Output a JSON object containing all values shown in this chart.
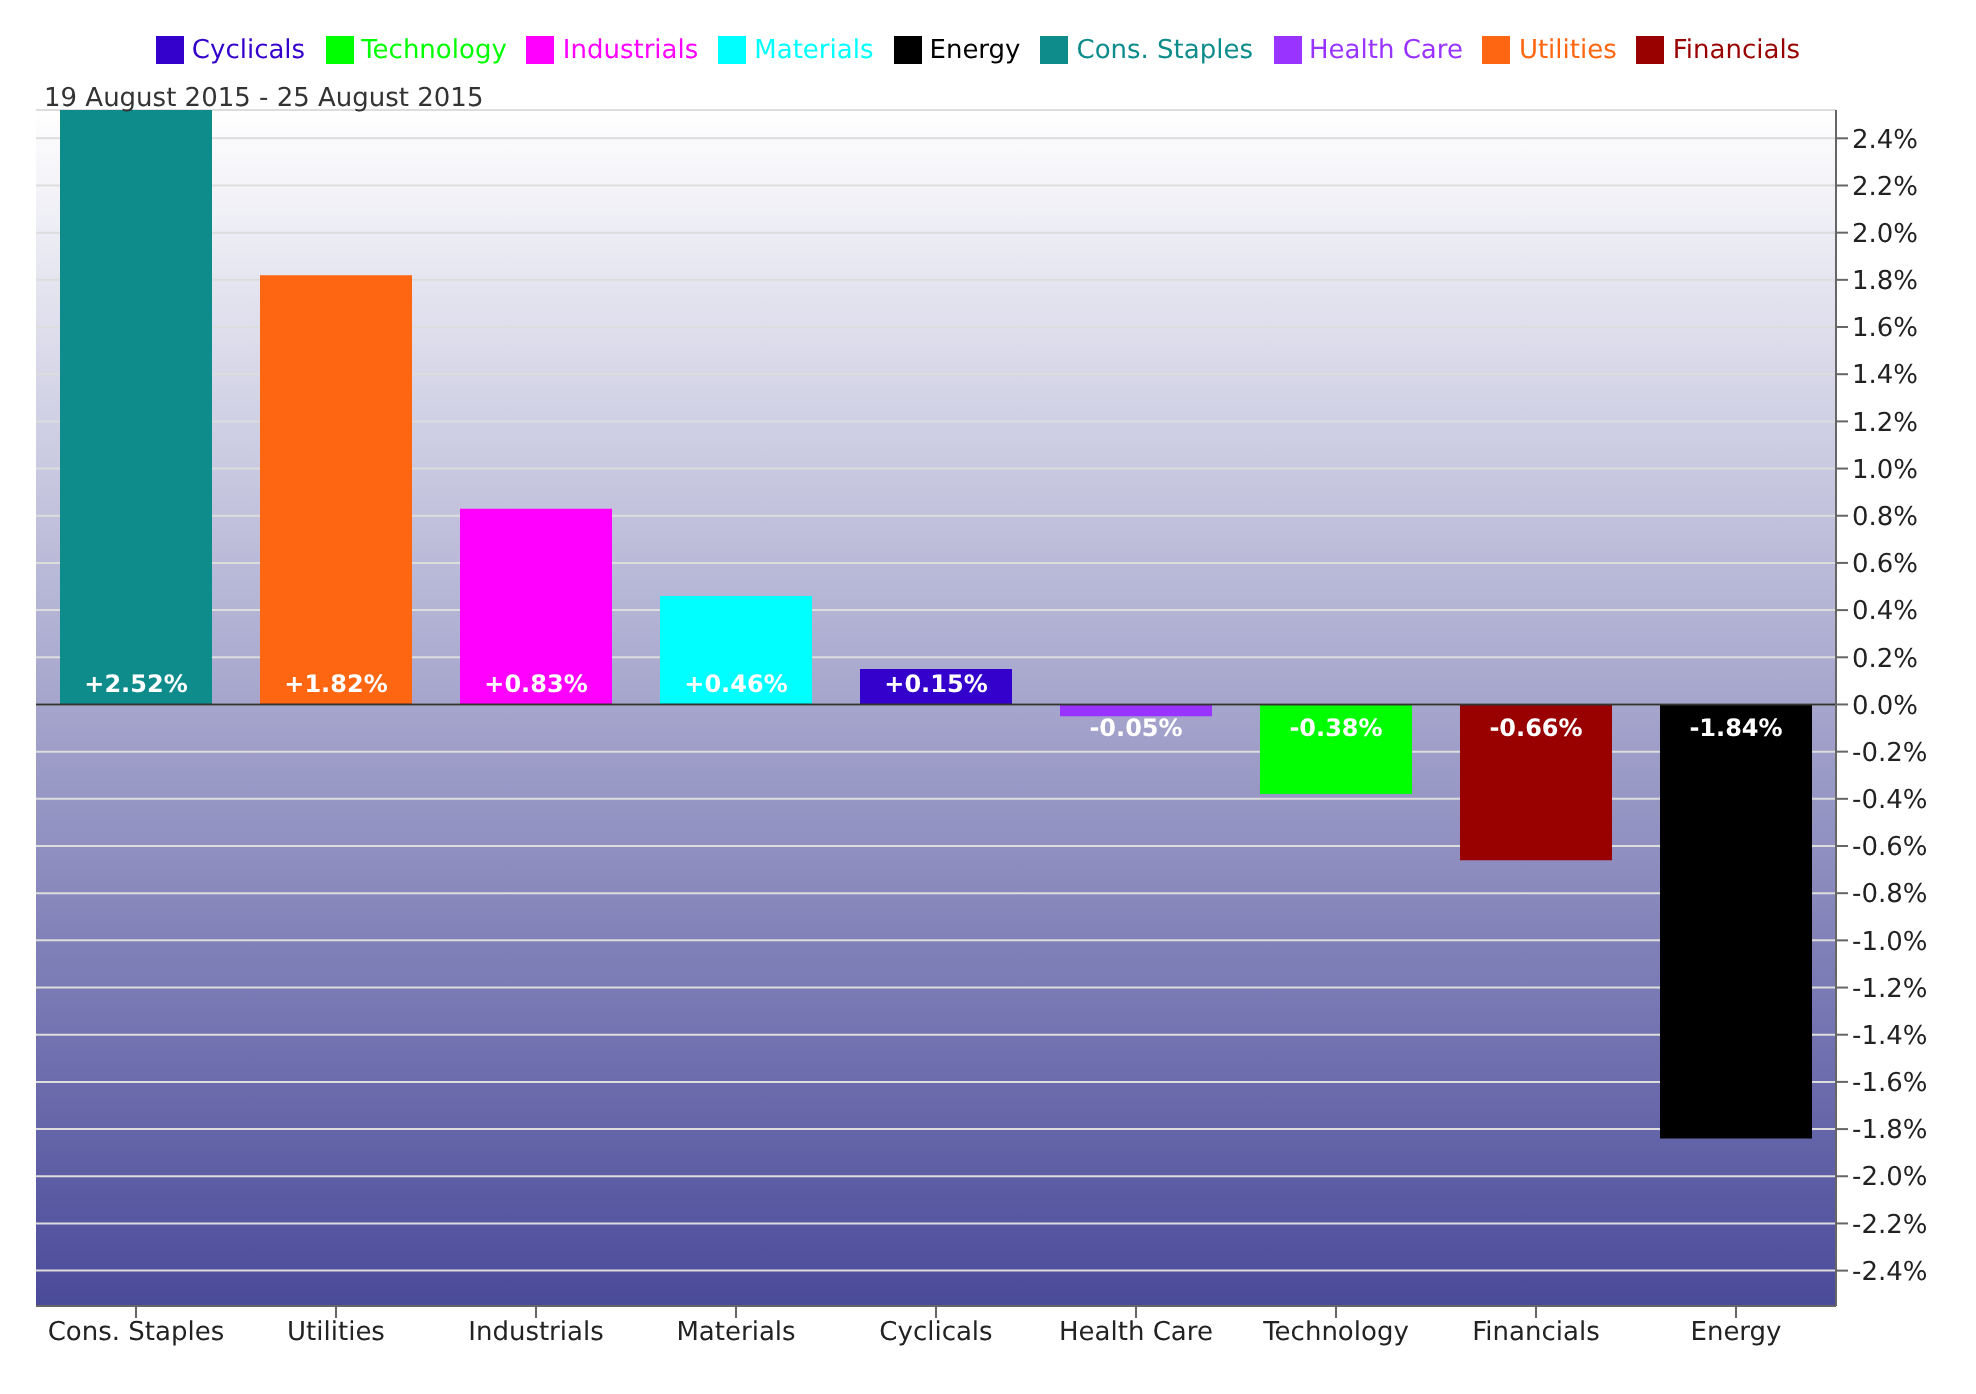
{
  "chart_data": {
    "type": "bar",
    "subtitle": "19 August 2015 - 25 August 2015",
    "categories": [
      "Cons. Staples",
      "Utilities",
      "Industrials",
      "Materials",
      "Cyclicals",
      "Health Care",
      "Technology",
      "Financials",
      "Energy"
    ],
    "stacked": true,
    "legend": "top",
    "grid": "y",
    "ylim": [
      -2.55,
      2.52
    ],
    "yticks": [
      {
        "value": -2.4,
        "label": "-2.4%"
      },
      {
        "value": -2.2,
        "label": "-2.2%"
      },
      {
        "value": -2.0,
        "label": "-2.0%"
      },
      {
        "value": -1.8,
        "label": "-1.8%"
      },
      {
        "value": -1.6,
        "label": "-1.6%"
      },
      {
        "value": -1.4,
        "label": "-1.4%"
      },
      {
        "value": -1.2,
        "label": "-1.2%"
      },
      {
        "value": -1.0,
        "label": "-1.0%"
      },
      {
        "value": -0.8,
        "label": "-0.8%"
      },
      {
        "value": -0.6,
        "label": "-0.6%"
      },
      {
        "value": -0.4,
        "label": "-0.4%"
      },
      {
        "value": -0.2,
        "label": "-0.2%"
      },
      {
        "value": 0,
        "label": "0.0%"
      },
      {
        "value": 0.2,
        "label": "0.2%"
      },
      {
        "value": 0.4,
        "label": "0.4%"
      },
      {
        "value": 0.6,
        "label": "0.6%"
      },
      {
        "value": 0.8,
        "label": "0.8%"
      },
      {
        "value": 1.0,
        "label": "1.0%"
      },
      {
        "value": 1.2,
        "label": "1.2%"
      },
      {
        "value": 1.4,
        "label": "1.4%"
      },
      {
        "value": 1.6,
        "label": "1.6%"
      },
      {
        "value": 1.8,
        "label": "1.8%"
      },
      {
        "value": 2.0,
        "label": "2.0%"
      },
      {
        "value": 2.2,
        "label": "2.2%"
      },
      {
        "value": 2.4,
        "label": "2.4%"
      }
    ],
    "series": [
      {
        "name": "Cyclicals",
        "color": "#3300cc",
        "values": [
          null,
          null,
          null,
          null,
          0.15,
          null,
          null,
          null,
          null
        ],
        "value_labels": [
          null,
          null,
          null,
          null,
          "+0.15%",
          null,
          null,
          null,
          null
        ]
      },
      {
        "name": "Technology",
        "color": "#00ff00",
        "values": [
          null,
          null,
          null,
          null,
          null,
          null,
          -0.38,
          null,
          null
        ],
        "value_labels": [
          null,
          null,
          null,
          null,
          null,
          null,
          "-0.38%",
          null,
          null
        ]
      },
      {
        "name": "Industrials",
        "color": "#ff00ff",
        "values": [
          null,
          null,
          0.83,
          null,
          null,
          null,
          null,
          null,
          null
        ],
        "value_labels": [
          null,
          null,
          "+0.83%",
          null,
          null,
          null,
          null,
          null,
          null
        ]
      },
      {
        "name": "Materials",
        "color": "#00ffff",
        "values": [
          null,
          null,
          null,
          0.46,
          null,
          null,
          null,
          null,
          null
        ],
        "value_labels": [
          null,
          null,
          null,
          "+0.46%",
          null,
          null,
          null,
          null,
          null
        ]
      },
      {
        "name": "Energy",
        "color": "#000000",
        "values": [
          null,
          null,
          null,
          null,
          null,
          null,
          null,
          null,
          -1.84
        ],
        "value_labels": [
          null,
          null,
          null,
          null,
          null,
          null,
          null,
          null,
          "-1.84%"
        ]
      },
      {
        "name": "Cons. Staples",
        "color": "#0e8c8c",
        "values": [
          2.52,
          null,
          null,
          null,
          null,
          null,
          null,
          null,
          null
        ],
        "value_labels": [
          "+2.52%",
          null,
          null,
          null,
          null,
          null,
          null,
          null,
          null
        ]
      },
      {
        "name": "Health Care",
        "color": "#9933ff",
        "values": [
          null,
          null,
          null,
          null,
          null,
          -0.05,
          null,
          null,
          null
        ],
        "value_labels": [
          null,
          null,
          null,
          null,
          null,
          "-0.05%",
          null,
          null,
          null
        ]
      },
      {
        "name": "Utilities",
        "color": "#ff6611",
        "values": [
          null,
          1.82,
          null,
          null,
          null,
          null,
          null,
          null,
          null
        ],
        "value_labels": [
          null,
          "+1.82%",
          null,
          null,
          null,
          null,
          null,
          null,
          null
        ]
      },
      {
        "name": "Financials",
        "color": "#990000",
        "values": [
          null,
          null,
          null,
          null,
          null,
          null,
          null,
          -0.66,
          null
        ],
        "value_labels": [
          null,
          null,
          null,
          null,
          null,
          null,
          null,
          "-0.66%",
          null
        ]
      }
    ]
  }
}
